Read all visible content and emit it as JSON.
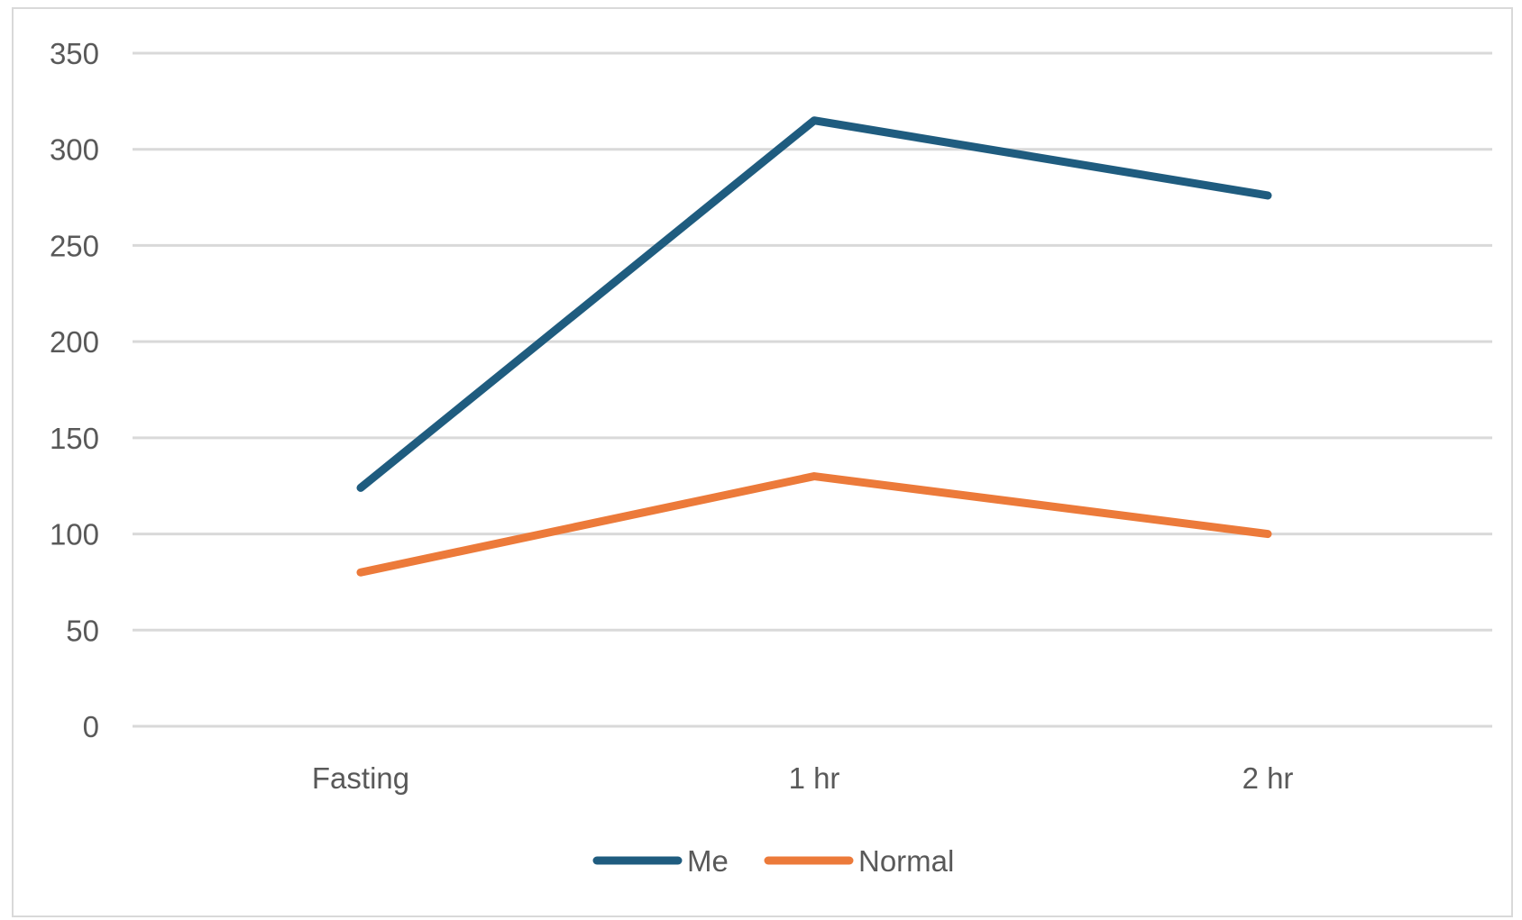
{
  "chart_data": {
    "type": "line",
    "categories": [
      "Fasting",
      "1 hr",
      "2 hr"
    ],
    "series": [
      {
        "name": "Me",
        "values": [
          124,
          315,
          276
        ],
        "color": "#1f5c7f"
      },
      {
        "name": "Normal",
        "values": [
          80,
          130,
          100
        ],
        "color": "#ec7a3a"
      }
    ],
    "ylim": [
      0,
      350
    ],
    "yticks": [
      "0",
      "50",
      "100",
      "150",
      "200",
      "250",
      "300",
      "350"
    ],
    "grid": true,
    "legend": "bottom"
  }
}
